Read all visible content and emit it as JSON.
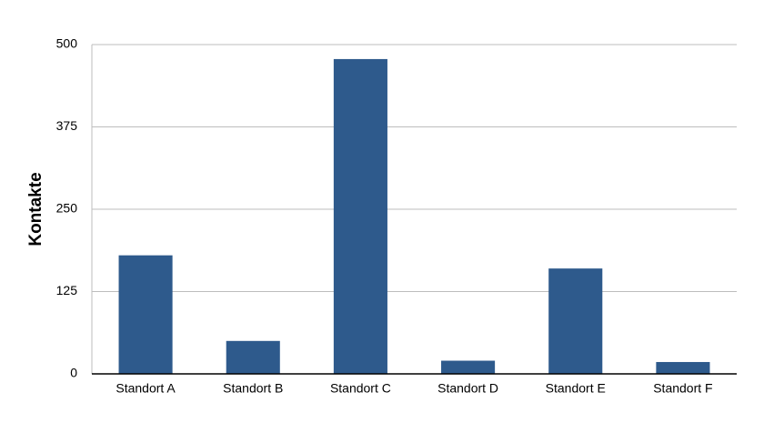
{
  "chart_data": {
    "type": "bar",
    "y_label": "Kontakte",
    "categories": [
      "Standort A",
      "Standort B",
      "Standort C",
      "Standort D",
      "Standort E",
      "Standort F"
    ],
    "values": [
      180,
      50,
      478,
      20,
      160,
      18
    ],
    "color": "#2e5a8c",
    "ylim": [
      0,
      500
    ],
    "yticks": [
      0,
      125,
      250,
      375,
      500
    ],
    "grid": true
  }
}
